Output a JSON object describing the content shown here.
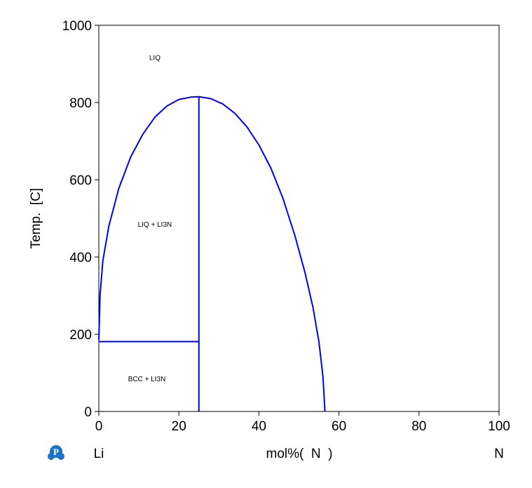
{
  "chart_data": {
    "type": "line",
    "title": "",
    "xlabel": "mol%(  N  )",
    "ylabel": "Temp.  [C]",
    "xlim": [
      0,
      100
    ],
    "ylim": [
      0,
      1000
    ],
    "x_ticks": [
      "0",
      "20",
      "40",
      "60",
      "80",
      "100"
    ],
    "y_ticks": [
      "0",
      "200",
      "400",
      "600",
      "800",
      "1000"
    ],
    "x_left_element": "Li",
    "x_right_element": "N",
    "grid": false,
    "line_color": "#0000ee",
    "series": [
      {
        "values": [
          [
            0,
            185
          ],
          [
            0.3,
            300
          ],
          [
            1,
            390
          ],
          [
            2.5,
            480
          ],
          [
            5,
            578
          ],
          [
            8,
            660
          ],
          [
            11,
            718
          ],
          [
            14,
            762
          ],
          [
            17,
            791
          ],
          [
            20,
            808
          ],
          [
            23,
            814
          ],
          [
            25,
            815
          ]
        ]
      },
      {
        "values": [
          [
            25,
            815
          ],
          [
            28,
            810
          ],
          [
            31,
            796
          ],
          [
            34,
            772
          ],
          [
            37,
            737
          ],
          [
            40,
            690
          ],
          [
            43,
            630
          ],
          [
            46,
            552
          ],
          [
            49,
            455
          ],
          [
            51.5,
            360
          ],
          [
            53.5,
            270
          ],
          [
            55,
            180
          ],
          [
            56,
            90
          ],
          [
            56.5,
            0
          ]
        ]
      },
      {
        "values": [
          [
            25,
            0
          ],
          [
            25,
            815
          ]
        ]
      },
      {
        "values": [
          [
            0,
            181
          ],
          [
            25,
            181
          ]
        ]
      }
    ],
    "annotations": [
      {
        "text": "LIQ",
        "x": 14,
        "y": 910
      },
      {
        "text": "LIQ + LI3N",
        "x": 14,
        "y": 478
      },
      {
        "text": "BCC + LI3N",
        "x": 12,
        "y": 78
      }
    ]
  },
  "logo": {
    "name": "pandat-logo-icon",
    "color": "#1a73c9",
    "letter": "P"
  }
}
